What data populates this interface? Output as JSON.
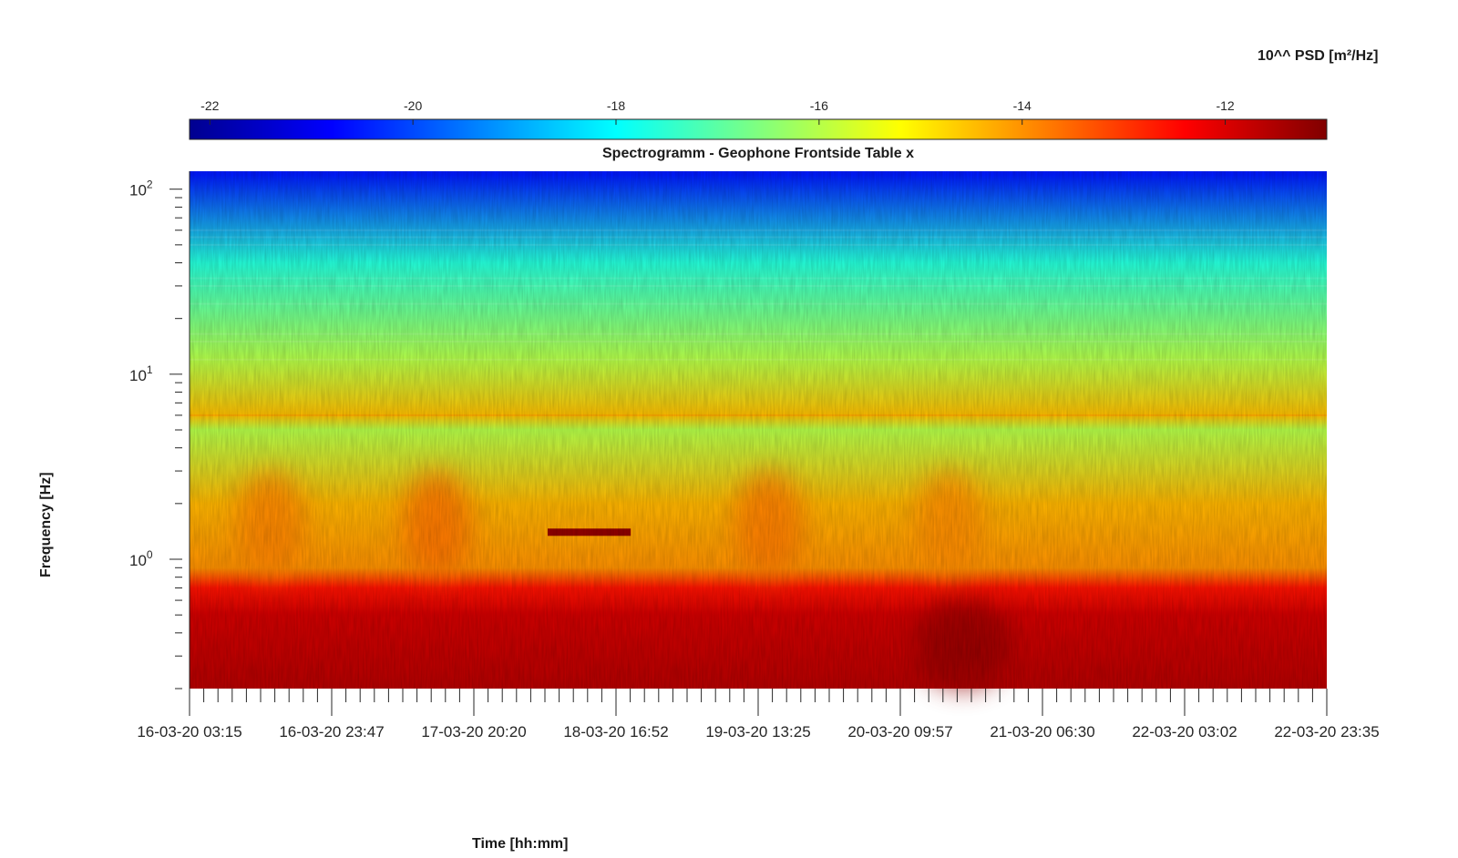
{
  "chart_data": {
    "type": "heatmap",
    "title": "Spectrogramm - Geophone Frontside Table x",
    "xlabel": "Time [hh:mm]",
    "ylabel": "Frequency [Hz]",
    "yscale": "log",
    "ylim": [
      0.2,
      125
    ],
    "y_ticks": [
      {
        "value": 1,
        "base": "10",
        "exp": "0"
      },
      {
        "value": 10,
        "base": "10",
        "exp": "1"
      },
      {
        "value": 100,
        "base": "10",
        "exp": "2"
      }
    ],
    "x_tick_labels": [
      "16-03-20 03:15",
      "16-03-20 23:47",
      "17-03-20 20:20",
      "18-03-20 16:52",
      "19-03-20 13:25",
      "20-03-20 09:57",
      "21-03-20 06:30",
      "22-03-20 03:02",
      "22-03-20 23:35"
    ],
    "x_start": "16-03-20 03:15",
    "x_end": "22-03-20 23:35",
    "colorbar": {
      "title": "10^^ PSD [m²/Hz]",
      "range": [
        -22.2,
        -11.0
      ],
      "ticks": [
        -22,
        -20,
        -18,
        -16,
        -14,
        -12
      ],
      "colormap": "jet"
    },
    "spectrum_profile": [
      {
        "freq": 0.2,
        "value": -11.6
      },
      {
        "freq": 0.5,
        "value": -11.9
      },
      {
        "freq": 0.7,
        "value": -12.6
      },
      {
        "freq": 0.9,
        "value": -14.0
      },
      {
        "freq": 2.0,
        "value": -14.4
      },
      {
        "freq": 5.0,
        "value": -16.0
      },
      {
        "freq": 6.0,
        "value": -14.5
      },
      {
        "freq": 12.0,
        "value": -16.0
      },
      {
        "freq": 40.0,
        "value": -17.6
      },
      {
        "freq": 120.0,
        "value": -20.5
      }
    ],
    "features": [
      {
        "kind": "daily_activity_high",
        "time_start": "16-03-20 10:00",
        "time_end": "16-03-20 20:00",
        "freq_range": [
          0.8,
          3.0
        ],
        "value": -13.8
      },
      {
        "kind": "daily_activity_high",
        "time_start": "17-03-20 10:00",
        "time_end": "17-03-20 20:00",
        "freq_range": [
          0.8,
          3.0
        ],
        "value": -13.6
      },
      {
        "kind": "narrowband_line",
        "time_start": "18-03-20 07:00",
        "time_end": "18-03-20 19:00",
        "freq": 1.4,
        "value": -11.2
      },
      {
        "kind": "daily_activity_high",
        "time_start": "19-03-20 10:00",
        "time_end": "19-03-20 20:00",
        "freq_range": [
          0.8,
          3.0
        ],
        "value": -13.7
      },
      {
        "kind": "daily_activity_high",
        "time_start": "20-03-20 12:00",
        "time_end": "20-03-20 22:00",
        "freq_range": [
          0.8,
          3.0
        ],
        "value": -13.9
      },
      {
        "kind": "night_low_freq_peak",
        "time_start": "20-03-20 12:00",
        "time_end": "21-03-20 02:00",
        "freq_range": [
          0.2,
          0.6
        ],
        "value": -11.2
      }
    ]
  }
}
